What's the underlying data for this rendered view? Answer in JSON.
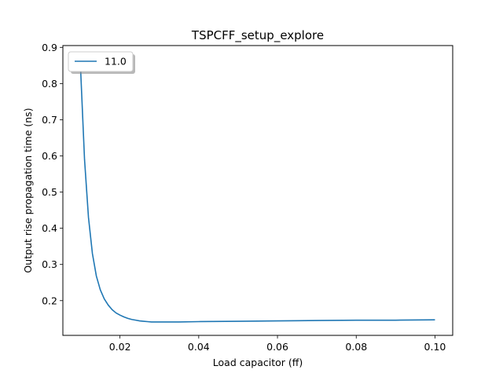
{
  "chart_data": {
    "type": "line",
    "title": "TSPCFF_setup_explore",
    "xlabel": "Load capacitor (ff)",
    "ylabel": "Output rise propagation time (ns)",
    "xlim": [
      0.0055,
      0.1045
    ],
    "ylim": [
      0.104,
      0.905
    ],
    "xticks": [
      0.02,
      0.04,
      0.06,
      0.08,
      0.1
    ],
    "xtick_labels": [
      "0.02",
      "0.04",
      "0.06",
      "0.08",
      "0.10"
    ],
    "yticks": [
      0.2,
      0.3,
      0.4,
      0.5,
      0.6,
      0.7,
      0.8,
      0.9
    ],
    "ytick_labels": [
      "0.2",
      "0.3",
      "0.4",
      "0.5",
      "0.6",
      "0.7",
      "0.8",
      "0.9"
    ],
    "grid": false,
    "legend_position": "top-left",
    "series": [
      {
        "name": "11.0",
        "color": "#1f77b4",
        "x": [
          0.01,
          0.011,
          0.012,
          0.013,
          0.014,
          0.015,
          0.016,
          0.017,
          0.018,
          0.019,
          0.02,
          0.021,
          0.022,
          0.023,
          0.024,
          0.025,
          0.026,
          0.027,
          0.028,
          0.03,
          0.035,
          0.04,
          0.05,
          0.06,
          0.07,
          0.08,
          0.09,
          0.1
        ],
        "y": [
          0.84,
          0.59,
          0.43,
          0.33,
          0.268,
          0.23,
          0.205,
          0.188,
          0.175,
          0.166,
          0.16,
          0.155,
          0.151,
          0.148,
          0.146,
          0.144,
          0.143,
          0.142,
          0.141,
          0.141,
          0.141,
          0.142,
          0.143,
          0.144,
          0.145,
          0.146,
          0.146,
          0.147
        ]
      }
    ]
  }
}
